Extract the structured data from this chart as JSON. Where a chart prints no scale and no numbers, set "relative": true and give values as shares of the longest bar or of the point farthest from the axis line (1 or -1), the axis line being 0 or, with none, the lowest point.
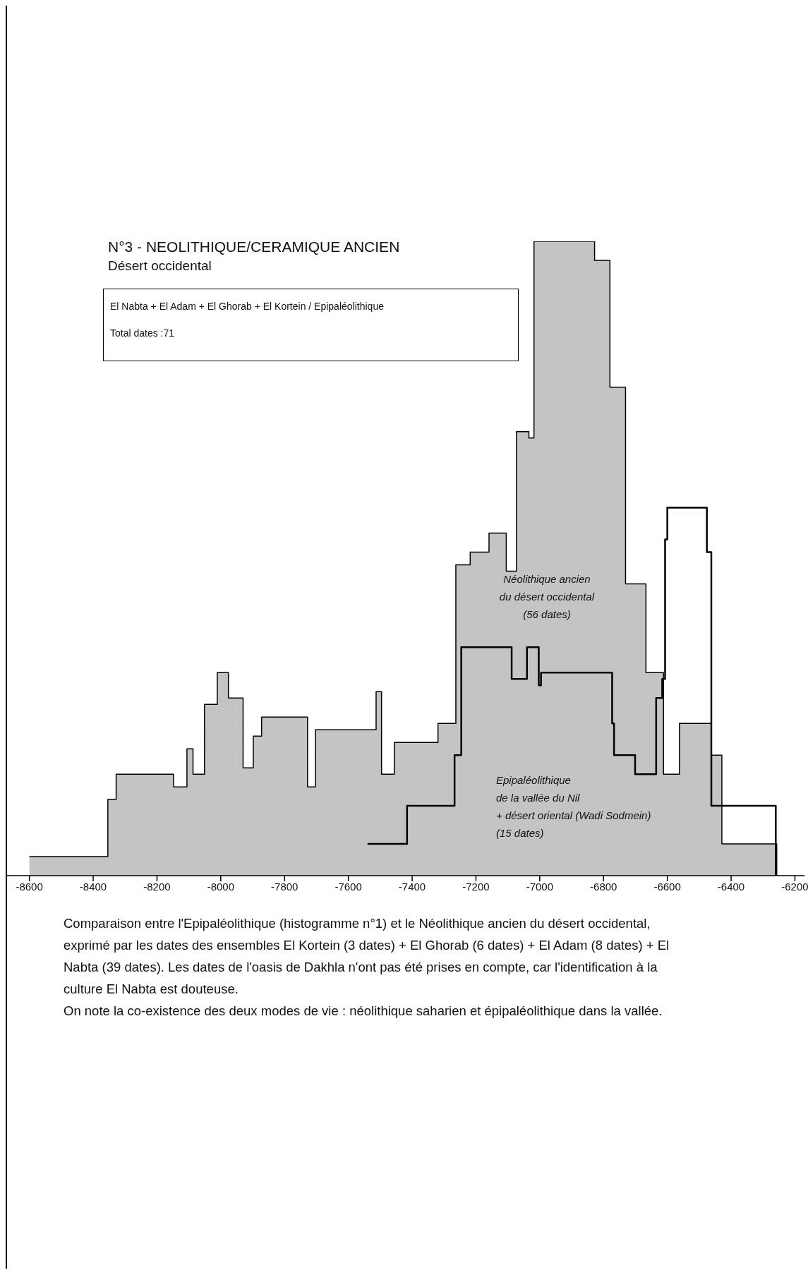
{
  "chart_data": {
    "type": "step",
    "title": "N°3 - NEOLITHIQUE/CERAMIQUE ANCIEN",
    "subtitle": "Désert occidental",
    "relative": true,
    "xlim": [
      -8670,
      -6170
    ],
    "xticks": [
      -8600,
      -8400,
      -8200,
      -8000,
      -7800,
      -7600,
      -7400,
      -7200,
      -7000,
      -6800,
      -6600,
      -6400,
      -6200
    ],
    "annotations": [
      "El Nabta + El Adam + El Ghorab + El Kortein / Epipaléolithique",
      "Total dates :71",
      "Comparaison entre l'Epipaléolithique (histogramme n°1) et le Néolithique ancien du désert occidental, exprimé par les dates des ensembles El Kortein (3 dates) + El Ghorab (6 dates) + El Adam (8 dates) + El Nabta (39 dates). Les dates de l'oasis de Dakhla n'ont pas été prises en compte, car l'identification à la culture El Nabta est douteuse.",
      "On note la co-existence des deux modes de vie : néolithique saharien et épipaléolithique dans la vallée."
    ],
    "series": [
      {
        "type": "area",
        "name": "Néolithique ancien\ndu désert occidental\n(56 dates)",
        "color": "#c4c4c4",
        "x": [
          -8600,
          -8354,
          -8328,
          -8148,
          -8106,
          -8087,
          -8051,
          -8011,
          -7976,
          -7930,
          -7898,
          -7872,
          -7728,
          -7703,
          -7513,
          -7496,
          -7456,
          -7319,
          -7263,
          -7218,
          -7159,
          -7105,
          -7073,
          -7034,
          -7018,
          -6828,
          -6780,
          -6731,
          -6667,
          -6612,
          -6562,
          -6462,
          -6429,
          -6257
        ],
        "values": [
          0.03,
          0.12,
          0.16,
          0.14,
          0.2,
          0.16,
          0.27,
          0.32,
          0.28,
          0.17,
          0.22,
          0.25,
          0.14,
          0.23,
          0.29,
          0.16,
          0.21,
          0.24,
          0.49,
          0.51,
          0.54,
          0.48,
          0.7,
          0.69,
          1.0,
          0.97,
          0.77,
          0.46,
          0.32,
          0.16,
          0.24,
          0.19,
          0.05,
          0
        ]
      },
      {
        "name": "Epipaléolithique\nde la vallée du Nil\n+ désert oriental (Wadi Sodmein)\n(15 dates)",
        "color": "#000000",
        "x": [
          -7540,
          -7416,
          -7267,
          -7246,
          -7088,
          -7040,
          -7003,
          -6996,
          -6773,
          -6767,
          -6701,
          -6635,
          -6616,
          -6607,
          -6600,
          -6476,
          -6462,
          -6260
        ],
        "values": [
          0.05,
          0.11,
          0.19,
          0.36,
          0.31,
          0.36,
          0.3,
          0.32,
          0.24,
          0.19,
          0.16,
          0.28,
          0.31,
          0.53,
          0.58,
          0.51,
          0.11,
          0
        ]
      }
    ]
  }
}
